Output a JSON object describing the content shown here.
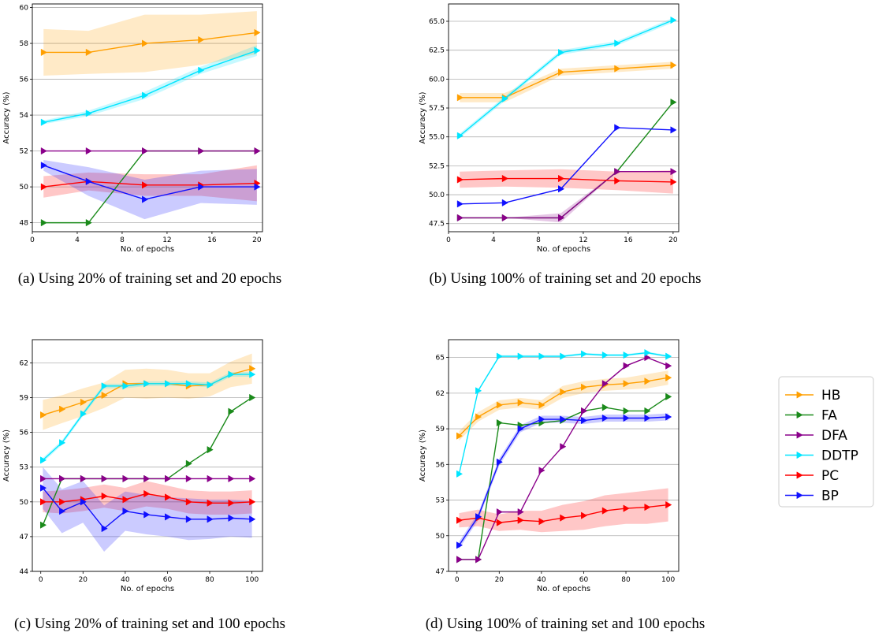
{
  "legend": {
    "items": [
      {
        "name": "HB",
        "color": "#ff9f00"
      },
      {
        "name": "FA",
        "color": "#1a8a1a"
      },
      {
        "name": "DFA",
        "color": "#8b008b"
      },
      {
        "name": "DDTP",
        "color": "#00e5ff"
      },
      {
        "name": "PC",
        "color": "#ff0000"
      },
      {
        "name": "BP",
        "color": "#1010ff"
      }
    ]
  },
  "chart_data": [
    {
      "type": "line",
      "caption": "(a) Using 20% of training set and 20 epochs",
      "xlabel": "No. of epochs",
      "ylabel": "Accuracy (%)",
      "xlim": [
        0,
        20.5
      ],
      "ylim": [
        47.5,
        60.2
      ],
      "xticks": [
        0,
        4,
        8,
        12,
        16,
        20
      ],
      "yticks": [
        48,
        50,
        52,
        54,
        56,
        58,
        60
      ],
      "ytick_labels": [
        "48",
        "50",
        "52",
        "54",
        "56",
        "58",
        "60"
      ],
      "grid": "y",
      "x": [
        1,
        5,
        10,
        15,
        20
      ],
      "series": [
        {
          "name": "HB",
          "values": [
            57.5,
            57.5,
            58.0,
            58.2,
            58.6
          ],
          "band": [
            1.3,
            1.2,
            1.6,
            1.4,
            1.2
          ]
        },
        {
          "name": "FA",
          "values": [
            48.0,
            48.0,
            52.0,
            52.0,
            52.0
          ],
          "band": [
            0,
            0,
            0,
            0,
            0
          ]
        },
        {
          "name": "DFA",
          "values": [
            52.0,
            52.0,
            52.0,
            52.0,
            52.0
          ],
          "band": [
            0,
            0,
            0,
            0,
            0
          ]
        },
        {
          "name": "DDTP",
          "values": [
            53.6,
            54.1,
            55.1,
            56.5,
            57.6
          ],
          "band": [
            0.1,
            0.15,
            0.2,
            0.2,
            0.3
          ]
        },
        {
          "name": "PC",
          "values": [
            50.0,
            50.3,
            50.1,
            50.1,
            50.2
          ],
          "band": [
            0.6,
            0.5,
            0.6,
            0.6,
            1.0
          ]
        },
        {
          "name": "BP",
          "values": [
            51.2,
            50.3,
            49.3,
            50.0,
            50.0
          ],
          "band": [
            0.3,
            0.8,
            1.1,
            0.9,
            1.0
          ]
        }
      ]
    },
    {
      "type": "line",
      "caption": "(b) Using 100% of training set and 20 epochs",
      "xlabel": "No. of epochs",
      "ylabel": "Accuracy (%)",
      "xlim": [
        0,
        20.5
      ],
      "ylim": [
        46.8,
        66.5
      ],
      "xticks": [
        0,
        4,
        8,
        12,
        16,
        20
      ],
      "yticks": [
        47.5,
        50.0,
        52.5,
        55.0,
        57.5,
        60.0,
        62.5,
        65.0
      ],
      "ytick_labels": [
        "47.5",
        "50.0",
        "52.5",
        "55.0",
        "57.5",
        "60.0",
        "62.5",
        "65.0"
      ],
      "grid": "y",
      "x": [
        1,
        5,
        10,
        15,
        20
      ],
      "series": [
        {
          "name": "HB",
          "values": [
            58.4,
            58.4,
            60.6,
            60.9,
            61.2
          ],
          "band": [
            0.4,
            0.4,
            0.3,
            0.3,
            0.3
          ]
        },
        {
          "name": "FA",
          "values": [
            48.0,
            48.0,
            48.0,
            52.0,
            58.0
          ],
          "band": [
            0,
            0,
            0,
            0,
            0
          ]
        },
        {
          "name": "DFA",
          "values": [
            48.0,
            48.0,
            48.0,
            52.0,
            52.0
          ],
          "band": [
            0,
            0,
            0.4,
            0,
            0
          ]
        },
        {
          "name": "DDTP",
          "values": [
            55.1,
            58.3,
            62.3,
            63.1,
            65.1
          ],
          "band": [
            0.2,
            0.2,
            0.2,
            0.2,
            0.2
          ]
        },
        {
          "name": "PC",
          "values": [
            51.3,
            51.4,
            51.4,
            51.2,
            51.1
          ],
          "band": [
            0.7,
            0.7,
            0.8,
            0.8,
            1.0
          ]
        },
        {
          "name": "BP",
          "values": [
            49.2,
            49.3,
            50.5,
            55.8,
            55.6
          ],
          "band": [
            0,
            0,
            0,
            0,
            0
          ]
        }
      ]
    },
    {
      "type": "line",
      "caption": "(c) Using 20% of training set and 100 epochs",
      "xlabel": "No. of epochs",
      "ylabel": "Accuracy (%)",
      "xlim": [
        -4,
        105
      ],
      "ylim": [
        44,
        64
      ],
      "xticks": [
        0,
        20,
        40,
        60,
        80,
        100
      ],
      "yticks": [
        44,
        47,
        50,
        53,
        56,
        59,
        62
      ],
      "ytick_labels": [
        "44",
        "47",
        "50",
        "53",
        "56",
        "59",
        "62"
      ],
      "grid": "y",
      "x": [
        1,
        10,
        20,
        30,
        40,
        50,
        60,
        70,
        80,
        90,
        100
      ],
      "series": [
        {
          "name": "HB",
          "values": [
            57.5,
            58.0,
            58.6,
            59.2,
            60.2,
            60.2,
            60.2,
            60.0,
            60.1,
            61.0,
            61.5
          ],
          "band": [
            1.3,
            1.2,
            1.2,
            1.1,
            1.2,
            1.3,
            1.2,
            1.1,
            1.0,
            1.1,
            1.3
          ]
        },
        {
          "name": "FA",
          "values": [
            48.0,
            52.0,
            52.0,
            52.0,
            52.0,
            52.0,
            52.0,
            53.3,
            54.5,
            57.8,
            59.0
          ],
          "band": [
            0,
            0,
            0,
            0,
            0,
            0,
            0,
            0,
            0,
            0,
            0
          ]
        },
        {
          "name": "DFA",
          "values": [
            52.0,
            52.0,
            52.0,
            52.0,
            52.0,
            52.0,
            52.0,
            52.0,
            52.0,
            52.0,
            52.0
          ],
          "band": [
            0,
            0,
            0,
            0,
            0,
            0,
            0,
            0,
            0,
            0,
            0
          ]
        },
        {
          "name": "DDTP",
          "values": [
            53.6,
            55.1,
            57.6,
            60.0,
            60.0,
            60.2,
            60.2,
            60.2,
            60.1,
            61.0,
            61.0
          ],
          "band": [
            0.2,
            0.2,
            0.2,
            0.2,
            0.2,
            0.2,
            0.2,
            0.2,
            0.2,
            0.2,
            0.2
          ]
        },
        {
          "name": "PC",
          "values": [
            50.0,
            50.0,
            50.2,
            50.5,
            50.2,
            50.7,
            50.4,
            50.0,
            49.9,
            49.9,
            50.0
          ],
          "band": [
            0.9,
            1.0,
            1.0,
            1.0,
            1.0,
            1.1,
            1.0,
            1.0,
            1.0,
            1.0,
            1.0
          ]
        },
        {
          "name": "BP",
          "values": [
            51.2,
            49.2,
            50.0,
            47.7,
            49.2,
            48.9,
            48.7,
            48.5,
            48.5,
            48.6,
            48.5
          ],
          "band": [
            1.8,
            1.9,
            1.8,
            2.0,
            1.7,
            1.7,
            1.7,
            1.8,
            1.7,
            1.6,
            1.6
          ]
        }
      ]
    },
    {
      "type": "line",
      "caption": "(d) Using 100% of training set and 100 epochs",
      "xlabel": "No. of epochs",
      "ylabel": "Accuracy (%)",
      "xlim": [
        -4,
        105
      ],
      "ylim": [
        47,
        66.5
      ],
      "xticks": [
        0,
        20,
        40,
        60,
        80,
        100
      ],
      "yticks": [
        47,
        50,
        53,
        56,
        59,
        62,
        65
      ],
      "ytick_labels": [
        "47",
        "50",
        "53",
        "56",
        "59",
        "62",
        "65"
      ],
      "grid": "y",
      "x": [
        1,
        10,
        20,
        30,
        40,
        50,
        60,
        70,
        80,
        90,
        100
      ],
      "series": [
        {
          "name": "HB",
          "values": [
            58.4,
            60.0,
            61.0,
            61.2,
            61.0,
            62.1,
            62.5,
            62.7,
            62.8,
            63.0,
            63.3
          ],
          "band": [
            0.4,
            0.4,
            0.4,
            0.4,
            0.4,
            0.5,
            0.5,
            0.5,
            0.5,
            0.6,
            0.6
          ]
        },
        {
          "name": "FA",
          "values": [
            48.0,
            48.0,
            59.5,
            59.3,
            59.5,
            59.7,
            60.5,
            60.8,
            60.5,
            60.5,
            61.7
          ],
          "band": [
            0,
            0,
            0,
            0,
            0,
            0,
            0,
            0,
            0,
            0,
            0
          ]
        },
        {
          "name": "DFA",
          "values": [
            48.0,
            48.0,
            52.0,
            52.0,
            55.5,
            57.5,
            60.5,
            62.8,
            64.3,
            65.0,
            64.3
          ],
          "band": [
            0,
            0,
            0,
            0,
            0,
            0,
            0,
            0,
            0,
            0,
            0
          ]
        },
        {
          "name": "DDTP",
          "values": [
            55.2,
            62.2,
            65.1,
            65.1,
            65.1,
            65.1,
            65.3,
            65.2,
            65.2,
            65.4,
            65.1
          ],
          "band": [
            0.1,
            0.1,
            0.1,
            0.1,
            0.1,
            0.1,
            0.1,
            0.1,
            0.1,
            0.1,
            0.1
          ]
        },
        {
          "name": "PC",
          "values": [
            51.3,
            51.5,
            51.1,
            51.3,
            51.2,
            51.5,
            51.7,
            52.1,
            52.3,
            52.4,
            52.6
          ],
          "band": [
            0.6,
            0.7,
            0.7,
            0.8,
            0.9,
            1.1,
            1.2,
            1.3,
            1.3,
            1.4,
            1.4
          ]
        },
        {
          "name": "BP",
          "values": [
            49.2,
            51.6,
            56.2,
            59.0,
            59.8,
            59.8,
            59.7,
            59.9,
            59.9,
            59.9,
            60.0
          ],
          "band": [
            0.3,
            0.3,
            0.3,
            0.3,
            0.3,
            0.3,
            0.3,
            0.3,
            0.3,
            0.3,
            0.3
          ]
        }
      ]
    }
  ]
}
